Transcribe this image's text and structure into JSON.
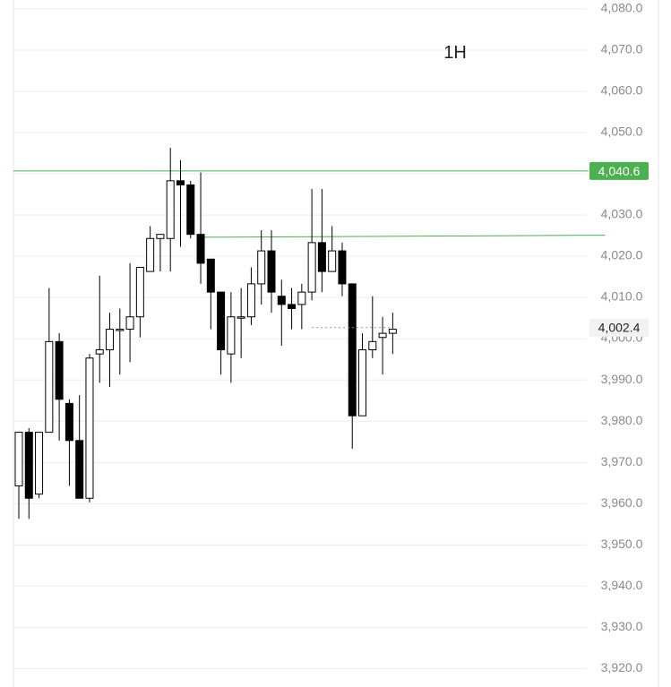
{
  "timeframe": "1H",
  "colors": {
    "background": "#ffffff",
    "grid": "#eeeeee",
    "axis_text": "#8a8a8a",
    "candle_up_fill": "#ffffff",
    "candle_down_fill": "#000000",
    "candle_stroke": "#000000",
    "level_line": "#4caf50",
    "level_tag_bg": "#4caf50",
    "level_tag_text": "#ffffff",
    "current_tag_bg": "#f2f2f2",
    "current_tag_text": "#222222"
  },
  "levels": {
    "horizontal": {
      "price": 4040.6,
      "label": "4,040.6"
    },
    "trendline": {
      "start_index": 18,
      "start_price": 4024.3,
      "end_index": 58,
      "end_price": 4024.8
    }
  },
  "current_price": {
    "price": 4002.4,
    "label": "4,002.4"
  },
  "chart_data": {
    "type": "candlestick",
    "title": "",
    "xlabel": "",
    "ylabel": "",
    "ylim": [
      3917,
      4082
    ],
    "grid": true,
    "y_ticks": [
      {
        "value": 4080,
        "label": "4,080.0"
      },
      {
        "value": 4070,
        "label": "4,070.0"
      },
      {
        "value": 4060,
        "label": "4,060.0"
      },
      {
        "value": 4050,
        "label": "4,050.0"
      },
      {
        "value": 4030,
        "label": "4,030.0"
      },
      {
        "value": 4020,
        "label": "4,020.0"
      },
      {
        "value": 4010,
        "label": "4,010.0"
      },
      {
        "value": 4000,
        "label": "4,000.0"
      },
      {
        "value": 3990,
        "label": "3,990.0"
      },
      {
        "value": 3980,
        "label": "3,980.0"
      },
      {
        "value": 3970,
        "label": "3,970.0"
      },
      {
        "value": 3960,
        "label": "3,960.0"
      },
      {
        "value": 3950,
        "label": "3,950.0"
      },
      {
        "value": 3940,
        "label": "3,940.0"
      },
      {
        "value": 3930,
        "label": "3,930.0"
      },
      {
        "value": 3920,
        "label": "3,920.0"
      }
    ],
    "candles": [
      {
        "o": 3964,
        "h": 3977,
        "l": 3956,
        "c": 3977
      },
      {
        "o": 3977,
        "h": 3978,
        "l": 3956,
        "c": 3961
      },
      {
        "o": 3962,
        "h": 3977,
        "l": 3961,
        "c": 3977
      },
      {
        "o": 3977,
        "h": 4012,
        "l": 3977,
        "c": 3999
      },
      {
        "o": 3999,
        "h": 4001,
        "l": 3975,
        "c": 3985
      },
      {
        "o": 3984,
        "h": 3985,
        "l": 3964,
        "c": 3975
      },
      {
        "o": 3975,
        "h": 3986,
        "l": 3961,
        "c": 3961
      },
      {
        "o": 3961,
        "h": 3996,
        "l": 3960,
        "c": 3995
      },
      {
        "o": 3996,
        "h": 4015,
        "l": 3989,
        "c": 3997
      },
      {
        "o": 3997,
        "h": 4006,
        "l": 3988,
        "c": 4002
      },
      {
        "o": 4002,
        "h": 4007,
        "l": 3991,
        "c": 4002
      },
      {
        "o": 4002,
        "h": 4018,
        "l": 3994,
        "c": 4005
      },
      {
        "o": 4005,
        "h": 4017,
        "l": 4000,
        "c": 4017
      },
      {
        "o": 4016,
        "h": 4027,
        "l": 4016,
        "c": 4024
      },
      {
        "o": 4024,
        "h": 4025,
        "l": 4016,
        "c": 4025
      },
      {
        "o": 4024,
        "h": 4046,
        "l": 4016,
        "c": 4038
      },
      {
        "o": 4038,
        "h": 4043,
        "l": 4022,
        "c": 4037
      },
      {
        "o": 4037,
        "h": 4038,
        "l": 4024,
        "c": 4025
      },
      {
        "o": 4025,
        "h": 4040,
        "l": 4013,
        "c": 4018
      },
      {
        "o": 4019,
        "h": 4019,
        "l": 4002,
        "c": 4011
      },
      {
        "o": 4011,
        "h": 4011,
        "l": 3991,
        "c": 3997
      },
      {
        "o": 3996,
        "h": 4011,
        "l": 3989,
        "c": 4005
      },
      {
        "o": 4005,
        "h": 4012,
        "l": 3995,
        "c": 4005
      },
      {
        "o": 4005,
        "h": 4017,
        "l": 4003,
        "c": 4013
      },
      {
        "o": 4013,
        "h": 4026,
        "l": 4008,
        "c": 4021
      },
      {
        "o": 4021,
        "h": 4026,
        "l": 4006,
        "c": 4011
      },
      {
        "o": 4010,
        "h": 4014,
        "l": 3998,
        "c": 4008
      },
      {
        "o": 4008,
        "h": 4012,
        "l": 4002,
        "c": 4007
      },
      {
        "o": 4008,
        "h": 4013,
        "l": 4002,
        "c": 4011
      },
      {
        "o": 4011,
        "h": 4036,
        "l": 4009,
        "c": 4023
      },
      {
        "o": 4023,
        "h": 4036,
        "l": 4011,
        "c": 4016
      },
      {
        "o": 4016,
        "h": 4027,
        "l": 4016,
        "c": 4021
      },
      {
        "o": 4021,
        "h": 4023,
        "l": 4010,
        "c": 4013
      },
      {
        "o": 4013,
        "h": 4013,
        "l": 3973,
        "c": 3981
      },
      {
        "o": 3981,
        "h": 4001,
        "l": 3981,
        "c": 3997
      },
      {
        "o": 3997,
        "h": 4010,
        "l": 3995,
        "c": 3999
      },
      {
        "o": 4000,
        "h": 4005,
        "l": 3991,
        "c": 4001
      },
      {
        "o": 4001,
        "h": 4006,
        "l": 3996,
        "c": 4002
      }
    ]
  }
}
